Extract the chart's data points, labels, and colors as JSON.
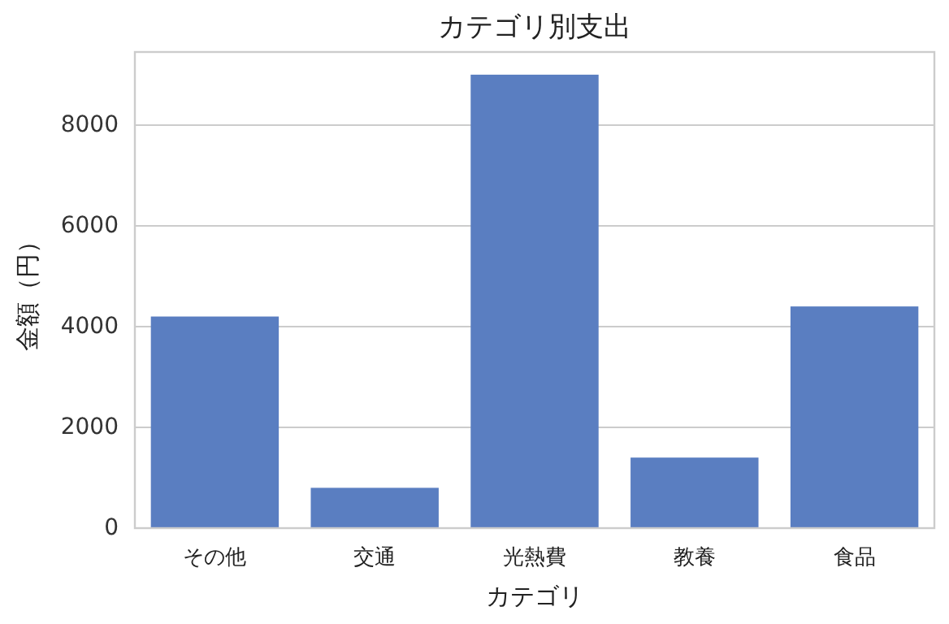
{
  "chart_data": {
    "type": "bar",
    "title": "カテゴリ別支出",
    "xlabel": "カテゴリ",
    "ylabel": "金額（円）",
    "categories": [
      "その他",
      "交通",
      "光熱費",
      "教養",
      "食品"
    ],
    "values": [
      4200,
      800,
      9000,
      1400,
      4400
    ],
    "color": "#5a7ec1",
    "ylim": [
      0,
      9450
    ],
    "yticks": [
      0,
      2000,
      4000,
      6000,
      8000
    ],
    "grid": "y"
  }
}
